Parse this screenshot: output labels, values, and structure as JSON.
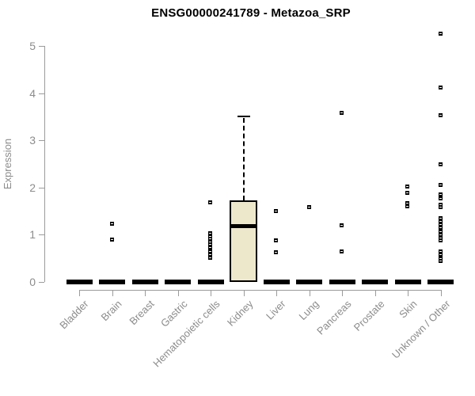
{
  "title": "ENSG00000241789 - Metazoa_SRP",
  "chart_data": {
    "type": "boxplot",
    "title": "ENSG00000241789 - Metazoa_SRP",
    "xlabel": "",
    "ylabel": "Expression",
    "ylim": [
      0,
      5
    ],
    "yticks": [
      0,
      1,
      2,
      3,
      4,
      5
    ],
    "grid": false,
    "legend": false,
    "categories": [
      "Bladder",
      "Brain",
      "Breast",
      "Gastric",
      "Hematopoietic cells",
      "Kidney",
      "Liver",
      "Lung",
      "Pancreas",
      "Prostate",
      "Skin",
      "Unknown / Other"
    ],
    "boxes": [
      {
        "category": "Bladder",
        "q1": 0,
        "median": 0,
        "q3": 0,
        "whisker_low": 0,
        "whisker_high": 0,
        "outliers": []
      },
      {
        "category": "Brain",
        "q1": 0,
        "median": 0,
        "q3": 0,
        "whisker_low": 0,
        "whisker_high": 0,
        "outliers": [
          1.22,
          0.88
        ]
      },
      {
        "category": "Breast",
        "q1": 0,
        "median": 0,
        "q3": 0,
        "whisker_low": 0,
        "whisker_high": 0,
        "outliers": []
      },
      {
        "category": "Gastric",
        "q1": 0,
        "median": 0,
        "q3": 0,
        "whisker_low": 0,
        "whisker_high": 0,
        "outliers": []
      },
      {
        "category": "Hematopoietic cells",
        "q1": 0,
        "median": 0,
        "q3": 0,
        "whisker_low": 0,
        "whisker_high": 0,
        "outliers": [
          1.68,
          1.02,
          0.96,
          0.9,
          0.84,
          0.78,
          0.71,
          0.64,
          0.57,
          0.5
        ]
      },
      {
        "category": "Kidney",
        "q1": 0,
        "median": 1.19,
        "q3": 1.72,
        "whisker_low": 0,
        "whisker_high": 3.5,
        "outliers": []
      },
      {
        "category": "Liver",
        "q1": 0,
        "median": 0,
        "q3": 0,
        "whisker_low": 0,
        "whisker_high": 0,
        "outliers": [
          1.49,
          0.87,
          0.62
        ]
      },
      {
        "category": "Lung",
        "q1": 0,
        "median": 0,
        "q3": 0,
        "whisker_low": 0,
        "whisker_high": 0,
        "outliers": [
          1.57
        ]
      },
      {
        "category": "Pancreas",
        "q1": 0,
        "median": 0,
        "q3": 0,
        "whisker_low": 0,
        "whisker_high": 0,
        "outliers": [
          3.58,
          1.18,
          0.63
        ]
      },
      {
        "category": "Prostate",
        "q1": 0,
        "median": 0,
        "q3": 0,
        "whisker_low": 0,
        "whisker_high": 0,
        "outliers": []
      },
      {
        "category": "Skin",
        "q1": 0,
        "median": 0,
        "q3": 0,
        "whisker_low": 0,
        "whisker_high": 0,
        "outliers": [
          2.01,
          1.88,
          1.66,
          1.59
        ]
      },
      {
        "category": "Unknown / Other",
        "q1": 0,
        "median": 0,
        "q3": 0,
        "whisker_low": 0,
        "whisker_high": 0,
        "outliers": [
          5.26,
          4.11,
          3.52,
          2.48,
          2.04,
          1.85,
          1.76,
          1.63,
          1.58,
          1.34,
          1.27,
          1.2,
          1.13,
          1.06,
          0.99,
          0.92,
          0.87,
          0.63,
          0.56,
          0.49,
          0.44
        ]
      }
    ],
    "colors": {
      "box_fill": "#ede8cc",
      "box_border": "#000000",
      "median": "#000000",
      "outlier": "#000000",
      "axis_line": "#9b9b9b",
      "axis_text": "#8c8c8c",
      "title_text": "#000000",
      "background": "#ffffff"
    }
  }
}
